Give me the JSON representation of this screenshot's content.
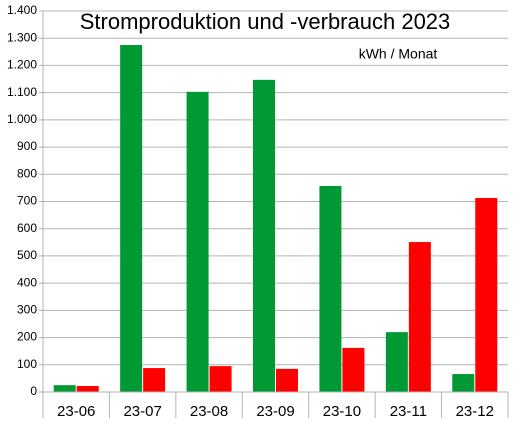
{
  "chart_data": {
    "type": "bar",
    "title": "Stromproduktion und -verbrauch 2023",
    "annotation": "kWh / Monat",
    "categories": [
      "23-06",
      "23-07",
      "23-08",
      "23-09",
      "23-10",
      "23-11",
      "23-12"
    ],
    "series": [
      {
        "color": "#009933",
        "values": [
          25,
          1275,
          1103,
          1147,
          757,
          220,
          66
        ]
      },
      {
        "color": "#ff0000",
        "values": [
          22,
          88,
          95,
          85,
          162,
          551,
          713
        ]
      }
    ],
    "ylim": [
      0,
      1400
    ],
    "yticks": [
      0,
      100,
      200,
      300,
      400,
      500,
      600,
      700,
      800,
      900,
      {
        "value": 1000,
        "label": "1.000"
      },
      {
        "value": 1100,
        "label": "1.100"
      },
      {
        "value": 1200,
        "label": "1.200"
      },
      {
        "value": 1300,
        "label": "1.300"
      },
      {
        "value": 1400,
        "label": "1.400"
      }
    ],
    "grid": true
  }
}
